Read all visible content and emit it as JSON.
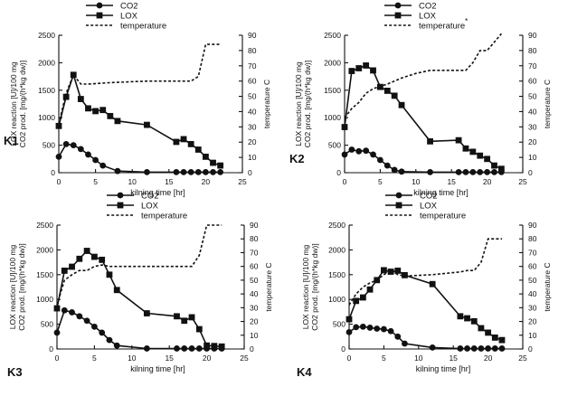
{
  "figure": {
    "legend_labels": [
      "CO2",
      "LOX",
      "temperature"
    ],
    "y_left_label_line1": "LOX reaction [U]/100 mg",
    "y_left_label_line2": "CO2 prod. [mg/(h*kg dw)]",
    "y_right_label": "temperature C",
    "x_label": "kilning time [hr]",
    "stray_mark": "*"
  },
  "chart_data": [
    {
      "type": "line",
      "panel_label": "K1",
      "xlabel": "kilning time [hr]",
      "ylabel": "LOX reaction [U]/100 mg / CO2 prod. [mg/(h*kg dw)]",
      "ylabel_right": "temperature C",
      "xlim": [
        0,
        25
      ],
      "ylim": [
        0,
        2500
      ],
      "ylim_right": [
        0,
        90
      ],
      "x_ticks": [
        0,
        5,
        10,
        15,
        20,
        25
      ],
      "y_ticks": [
        0,
        500,
        1000,
        1500,
        2000,
        2500
      ],
      "y_right_ticks": [
        0,
        10,
        20,
        30,
        40,
        50,
        60,
        70,
        80,
        90
      ],
      "legend": "top-left",
      "series": [
        {
          "name": "CO2",
          "axis": "left",
          "marker": "circle",
          "x": [
            0,
            1,
            2,
            3,
            4,
            5,
            6,
            8,
            12,
            16,
            17,
            18,
            19,
            20,
            21,
            22
          ],
          "y": [
            290,
            520,
            500,
            430,
            330,
            230,
            130,
            30,
            10,
            10,
            10,
            10,
            10,
            10,
            10,
            10
          ]
        },
        {
          "name": "LOX",
          "axis": "left",
          "marker": "square",
          "x": [
            0,
            1,
            2,
            3,
            4,
            5,
            6,
            7,
            8,
            12,
            16,
            17,
            18,
            19,
            20,
            21,
            22
          ],
          "y": [
            850,
            1380,
            1780,
            1340,
            1170,
            1120,
            1140,
            1030,
            940,
            870,
            560,
            610,
            520,
            420,
            290,
            180,
            130
          ]
        },
        {
          "name": "temperature",
          "axis": "right",
          "marker": "none",
          "x": [
            0,
            1,
            2,
            3,
            4,
            7,
            12,
            16,
            17,
            18,
            19,
            20,
            22
          ],
          "y": [
            32,
            52,
            64,
            58,
            58,
            59,
            60,
            60,
            60,
            60,
            63,
            84,
            84
          ]
        }
      ]
    },
    {
      "type": "line",
      "panel_label": "K2",
      "xlabel": "kilning time [hr]",
      "ylabel": "LOX reaction [U]/100 mg / CO2 prod. [mg/(h*kg dw)]",
      "ylabel_right": "temperature C",
      "xlim": [
        0,
        25
      ],
      "ylim": [
        0,
        2500
      ],
      "ylim_right": [
        0,
        90
      ],
      "x_ticks": [
        0,
        5,
        10,
        15,
        20,
        25
      ],
      "y_ticks": [
        0,
        500,
        1000,
        1500,
        2000,
        2500
      ],
      "y_right_ticks": [
        0,
        10,
        20,
        30,
        40,
        50,
        60,
        70,
        80,
        90
      ],
      "legend": "top-left",
      "series": [
        {
          "name": "CO2",
          "axis": "left",
          "marker": "circle",
          "x": [
            0,
            1,
            2,
            3,
            4,
            5,
            6,
            7,
            8,
            12,
            16,
            17,
            18,
            19,
            20,
            21,
            22
          ],
          "y": [
            330,
            420,
            390,
            400,
            330,
            230,
            130,
            50,
            20,
            10,
            10,
            10,
            10,
            10,
            10,
            10,
            10
          ]
        },
        {
          "name": "LOX",
          "axis": "left",
          "marker": "square",
          "x": [
            0,
            1,
            2,
            3,
            4,
            5,
            6,
            7,
            8,
            12,
            16,
            17,
            18,
            19,
            20,
            21,
            22
          ],
          "y": [
            830,
            1850,
            1900,
            1950,
            1860,
            1560,
            1490,
            1400,
            1230,
            570,
            590,
            440,
            380,
            310,
            250,
            130,
            70
          ]
        },
        {
          "name": "temperature",
          "axis": "right",
          "marker": "none",
          "x": [
            0,
            1,
            2,
            3,
            4,
            6,
            8,
            10,
            12,
            16,
            17,
            18,
            19,
            20,
            22
          ],
          "y": [
            36,
            42,
            46,
            52,
            55,
            58,
            62,
            65,
            67,
            67,
            67,
            72,
            80,
            80,
            91
          ]
        }
      ]
    },
    {
      "type": "line",
      "panel_label": "K3",
      "xlabel": "kilning time [hr]",
      "ylabel": "LOX reaction [U]/100 mg / CO2 prod. [mg/(h*kg dw)]",
      "ylabel_right": "temperature C",
      "xlim": [
        0,
        25
      ],
      "ylim": [
        0,
        2500
      ],
      "ylim_right": [
        0,
        90
      ],
      "x_ticks": [
        0,
        5,
        10,
        15,
        20,
        25
      ],
      "y_ticks": [
        0,
        500,
        1000,
        1500,
        2000,
        2500
      ],
      "y_right_ticks": [
        0,
        10,
        20,
        30,
        40,
        50,
        60,
        70,
        80,
        90
      ],
      "legend": "top-center",
      "series": [
        {
          "name": "CO2",
          "axis": "left",
          "marker": "circle",
          "x": [
            0,
            1,
            2,
            3,
            4,
            5,
            6,
            7,
            8,
            12,
            16,
            17,
            18,
            19,
            20,
            21,
            22
          ],
          "y": [
            330,
            780,
            740,
            660,
            570,
            450,
            330,
            180,
            70,
            10,
            10,
            10,
            10,
            10,
            10,
            10,
            10
          ]
        },
        {
          "name": "LOX",
          "axis": "left",
          "marker": "square",
          "x": [
            0,
            1,
            2,
            3,
            4,
            5,
            6,
            7,
            8,
            12,
            16,
            17,
            18,
            19,
            20,
            21,
            22
          ],
          "y": [
            820,
            1580,
            1660,
            1820,
            1980,
            1860,
            1800,
            1500,
            1190,
            720,
            660,
            570,
            640,
            400,
            70,
            60,
            50
          ]
        },
        {
          "name": "temperature",
          "axis": "right",
          "marker": "none",
          "x": [
            0,
            1,
            2,
            3,
            4,
            5,
            6,
            7,
            8,
            12,
            16,
            17,
            18,
            19,
            20,
            22
          ],
          "y": [
            32,
            50,
            54,
            57,
            57,
            60,
            61,
            60,
            60,
            60,
            60,
            60,
            60,
            68,
            90,
            90
          ]
        }
      ]
    },
    {
      "type": "line",
      "panel_label": "K4",
      "xlabel": "kilning time [hr]",
      "ylabel": "LOX reaction [U]/100 mg / CO2 prod. [mg/(h*kg dw)]",
      "ylabel_right": "temperature C",
      "xlim": [
        0,
        25
      ],
      "ylim": [
        0,
        2500
      ],
      "ylim_right": [
        0,
        90
      ],
      "x_ticks": [
        0,
        5,
        10,
        15,
        20,
        25
      ],
      "y_ticks": [
        0,
        500,
        1000,
        1500,
        2000,
        2500
      ],
      "y_right_ticks": [
        0,
        10,
        20,
        30,
        40,
        50,
        60,
        70,
        80,
        90
      ],
      "legend": "top-center",
      "series": [
        {
          "name": "CO2",
          "axis": "left",
          "marker": "circle",
          "x": [
            0,
            1,
            2,
            3,
            4,
            5,
            6,
            7,
            8,
            12,
            16,
            17,
            18,
            19,
            20,
            21,
            22
          ],
          "y": [
            340,
            440,
            450,
            430,
            410,
            400,
            360,
            250,
            110,
            30,
            10,
            10,
            10,
            10,
            10,
            10,
            10
          ]
        },
        {
          "name": "LOX",
          "axis": "left",
          "marker": "square",
          "x": [
            0,
            1,
            2,
            3,
            4,
            5,
            6,
            7,
            8,
            12,
            16,
            17,
            18,
            19,
            20,
            21,
            22
          ],
          "y": [
            600,
            970,
            1040,
            1200,
            1390,
            1590,
            1560,
            1580,
            1490,
            1310,
            660,
            620,
            560,
            420,
            330,
            230,
            180
          ]
        },
        {
          "name": "temperature",
          "axis": "right",
          "marker": "none",
          "x": [
            0,
            1,
            2,
            3,
            4,
            5,
            6,
            7,
            8,
            12,
            16,
            17,
            18,
            19,
            20,
            22
          ],
          "y": [
            32,
            40,
            45,
            48,
            50,
            54,
            57,
            54,
            53,
            54,
            56,
            57,
            57,
            63,
            80,
            80
          ]
        }
      ]
    }
  ]
}
